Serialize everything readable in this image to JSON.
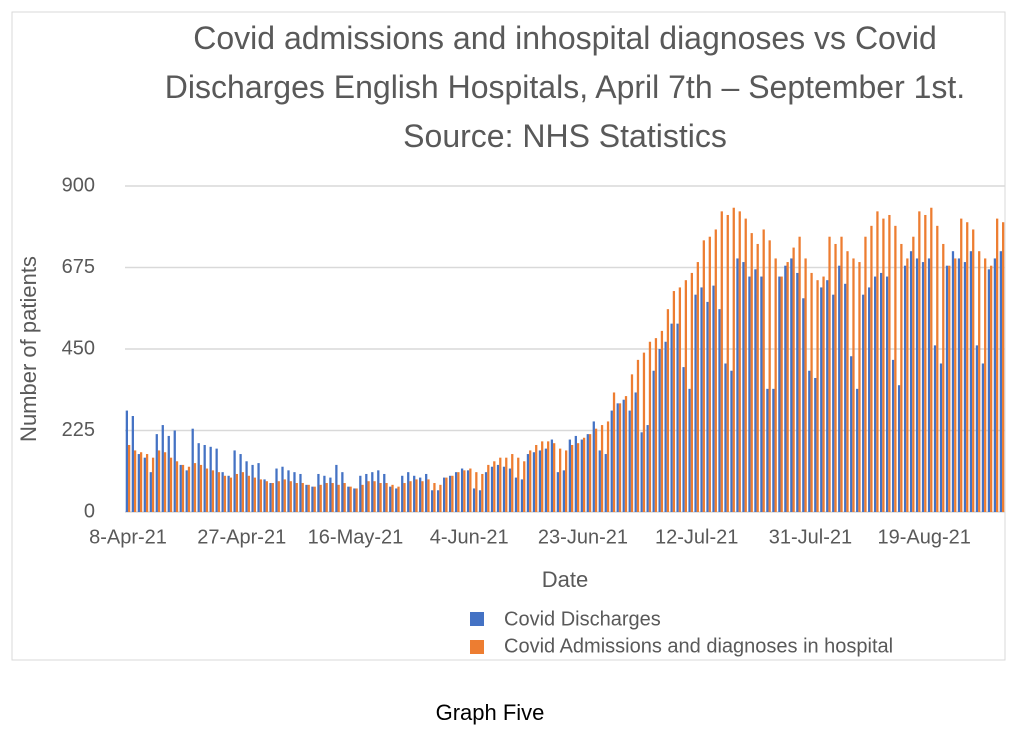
{
  "chart_data": {
    "type": "bar",
    "title": "Covid admissions and inhospital diagnoses vs Covid Discharges English Hospitals, April 7th – September 1st. Source: NHS Statistics",
    "x_label": "Date",
    "y_label": "Number of patients",
    "categories": [
      "8-Apr-21",
      null,
      null,
      null,
      null,
      null,
      null,
      null,
      null,
      null,
      null,
      null,
      null,
      null,
      null,
      null,
      null,
      null,
      null,
      "27-Apr-21",
      null,
      null,
      null,
      null,
      null,
      null,
      null,
      null,
      null,
      null,
      null,
      null,
      null,
      null,
      null,
      null,
      null,
      null,
      "16-May-21",
      null,
      null,
      null,
      null,
      null,
      null,
      null,
      null,
      null,
      null,
      null,
      null,
      null,
      null,
      null,
      null,
      null,
      null,
      "4-Jun-21",
      null,
      null,
      null,
      null,
      null,
      null,
      null,
      null,
      null,
      null,
      null,
      null,
      null,
      null,
      null,
      null,
      null,
      null,
      "23-Jun-21",
      null,
      null,
      null,
      null,
      null,
      null,
      null,
      null,
      null,
      null,
      null,
      null,
      null,
      null,
      null,
      null,
      null,
      null,
      "12-Jul-21",
      null,
      null,
      null,
      null,
      null,
      null,
      null,
      null,
      null,
      null,
      null,
      null,
      null,
      null,
      null,
      null,
      null,
      null,
      "31-Jul-21",
      null,
      null,
      null,
      null,
      null,
      null,
      null,
      null,
      null,
      null,
      null,
      null,
      null,
      null,
      null,
      null,
      null,
      null,
      "19-Aug-21",
      null,
      null,
      null,
      null,
      null,
      null,
      null,
      null,
      null,
      null,
      null,
      null,
      null
    ],
    "series": [
      {
        "name": "Covid Discharges",
        "color": "#4472c4",
        "values": [
          280,
          265,
          160,
          150,
          110,
          215,
          240,
          210,
          225,
          130,
          115,
          230,
          190,
          185,
          180,
          175,
          110,
          100,
          170,
          160,
          140,
          130,
          135,
          90,
          80,
          120,
          125,
          115,
          110,
          105,
          75,
          70,
          105,
          100,
          95,
          130,
          110,
          70,
          65,
          100,
          105,
          110,
          115,
          105,
          70,
          65,
          100,
          110,
          100,
          95,
          105,
          60,
          60,
          95,
          100,
          110,
          120,
          115,
          65,
          60,
          110,
          125,
          130,
          125,
          120,
          95,
          90,
          160,
          165,
          170,
          175,
          200,
          110,
          115,
          200,
          210,
          200,
          215,
          250,
          170,
          160,
          280,
          300,
          310,
          280,
          330,
          220,
          240,
          390,
          450,
          470,
          520,
          520,
          400,
          340,
          600,
          620,
          580,
          625,
          560,
          410,
          390,
          700,
          690,
          650,
          670,
          650,
          340,
          340,
          650,
          680,
          700,
          660,
          590,
          390,
          370,
          620,
          640,
          600,
          680,
          630,
          430,
          340,
          600,
          620,
          650,
          660,
          650,
          420,
          350,
          680,
          720,
          700,
          690,
          700,
          460,
          410,
          680,
          720,
          700,
          690,
          720,
          460,
          410,
          670,
          700,
          720
        ]
      },
      {
        "name": "Covid Admissions and diagnoses in hospital",
        "color": "#ed7d31",
        "values": [
          185,
          170,
          165,
          160,
          150,
          170,
          165,
          150,
          140,
          130,
          125,
          135,
          130,
          120,
          115,
          110,
          100,
          95,
          105,
          110,
          100,
          95,
          90,
          85,
          80,
          85,
          90,
          85,
          80,
          80,
          75,
          70,
          75,
          80,
          80,
          75,
          80,
          70,
          65,
          75,
          85,
          85,
          80,
          80,
          75,
          70,
          80,
          85,
          90,
          85,
          90,
          80,
          75,
          95,
          100,
          110,
          115,
          120,
          110,
          105,
          130,
          140,
          150,
          150,
          160,
          150,
          140,
          170,
          185,
          195,
          195,
          190,
          175,
          170,
          185,
          190,
          205,
          215,
          230,
          240,
          250,
          330,
          300,
          320,
          380,
          420,
          440,
          470,
          480,
          500,
          560,
          610,
          620,
          640,
          660,
          690,
          750,
          760,
          780,
          830,
          820,
          840,
          830,
          810,
          770,
          740,
          780,
          750,
          700,
          650,
          690,
          730,
          760,
          700,
          660,
          640,
          650,
          760,
          740,
          760,
          720,
          700,
          690,
          760,
          790,
          830,
          810,
          820,
          790,
          740,
          700,
          760,
          830,
          820,
          840,
          790,
          740,
          680,
          700,
          810,
          800,
          780,
          720,
          700,
          680,
          810,
          800
        ]
      }
    ],
    "ylim": [
      0,
      900
    ],
    "yticks": [
      0,
      225,
      450,
      675,
      900
    ],
    "grid": true
  },
  "caption": "Graph Five"
}
